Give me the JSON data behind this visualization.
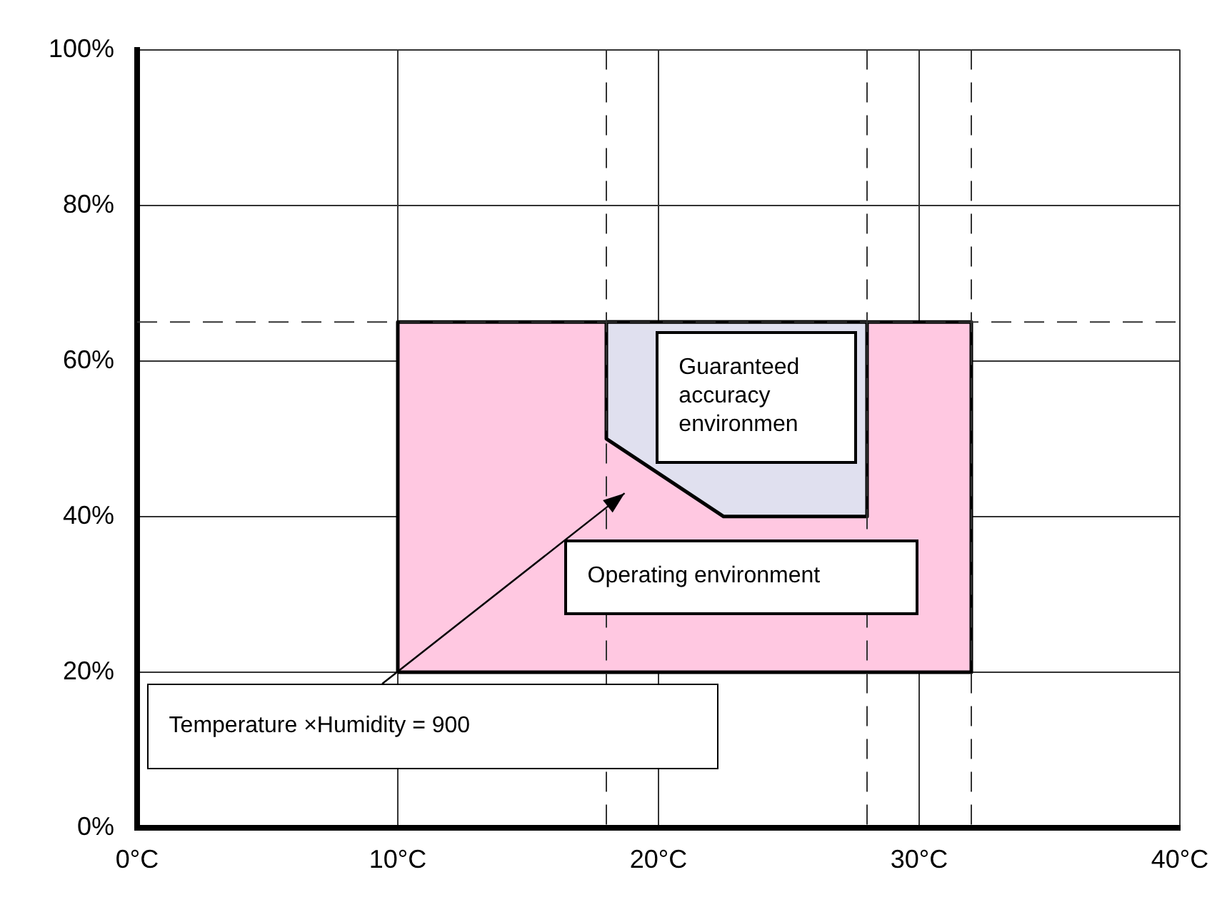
{
  "chart_data": {
    "type": "area",
    "xlim": [
      0,
      40
    ],
    "xticks": [
      {
        "value": 0,
        "label": "0°C"
      },
      {
        "value": 10,
        "label": "10°C"
      },
      {
        "value": 20,
        "label": "20°C"
      },
      {
        "value": 30,
        "label": "30°C"
      },
      {
        "value": 40,
        "label": "40°C"
      }
    ],
    "ylim": [
      0,
      100
    ],
    "yticks": [
      {
        "value": 0,
        "label": "0%"
      },
      {
        "value": 20,
        "label": "20%"
      },
      {
        "value": 40,
        "label": "40%"
      },
      {
        "value": 60,
        "label": "60%"
      },
      {
        "value": 80,
        "label": "80%"
      },
      {
        "value": 100,
        "label": "100%"
      }
    ],
    "grid": true,
    "series": [
      {
        "color": "#ffc8e1",
        "x": [
          10,
          10,
          32,
          32,
          10
        ],
        "values": [
          20,
          65,
          65,
          20,
          20
        ]
      },
      {
        "color": "#e0e0ef",
        "x": [
          18,
          28,
          28,
          22.5,
          18,
          18
        ],
        "values": [
          65,
          65,
          40,
          40,
          50,
          65
        ]
      }
    ],
    "ref_lines": [
      {
        "axis": "x",
        "value": 18,
        "line_style": "dashed"
      },
      {
        "axis": "x",
        "value": 28,
        "line_style": "dashed"
      },
      {
        "axis": "x",
        "value": 32,
        "line_style": "dashed"
      },
      {
        "axis": "y",
        "value": 65,
        "line_style": "dashed"
      }
    ],
    "annotations": [
      "Guaranteed accuracy environmen",
      "Operating environment",
      "Temperature ×Humidity = 900"
    ]
  }
}
